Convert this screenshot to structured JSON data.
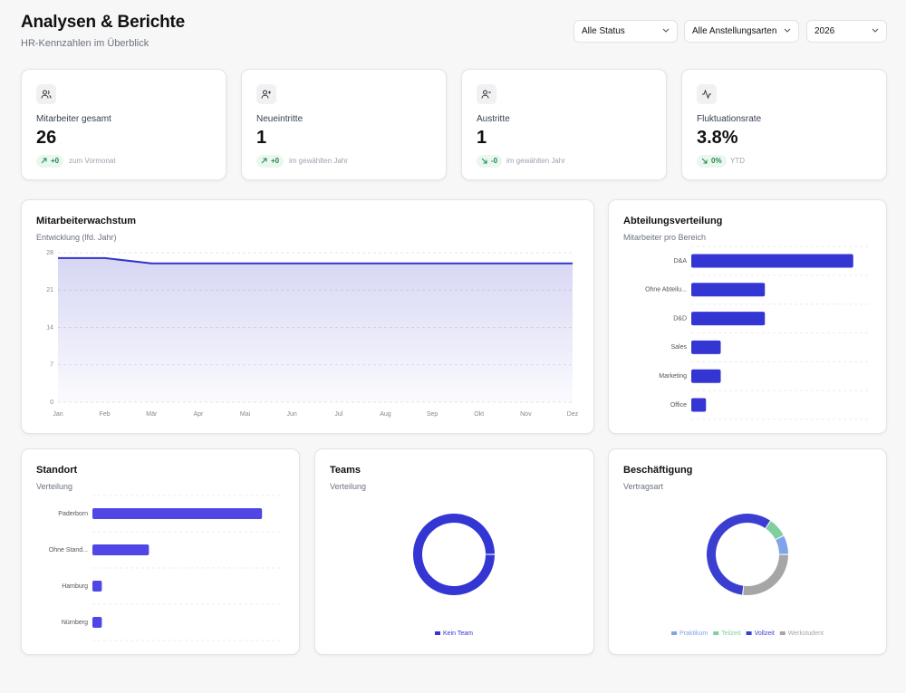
{
  "header": {
    "title": "Analysen & Berichte",
    "subtitle": "HR-Kennzahlen im Überblick"
  },
  "filters": [
    "Alle Status",
    "Alle Anstellungsarten",
    "2026"
  ],
  "kpis": [
    {
      "label": "Mitarbeiter gesamt",
      "value": "26",
      "change": "+0",
      "note": "zum Vormonat"
    },
    {
      "label": "Neueintritte",
      "value": "1",
      "change": "+0",
      "note": "im gewählten Jahr"
    },
    {
      "label": "Austritte",
      "value": "1",
      "change": "-0",
      "note": "im gewählten Jahr"
    },
    {
      "label": "Fluktuationsrate",
      "value": "3.8%",
      "change": "0%",
      "note": "YTD"
    }
  ],
  "growth_chart": {
    "type": "area",
    "title": "Mitarbeiterwachstum",
    "subtitle": "Entwicklung (lfd. Jahr)",
    "categories": [
      "Jan",
      "Feb",
      "Mär",
      "Apr",
      "Mai",
      "Jun",
      "Jul",
      "Aug",
      "Sep",
      "Okt",
      "Nov",
      "Dez"
    ],
    "values": [
      27,
      27,
      26,
      26,
      26,
      26,
      26,
      26,
      26,
      26,
      26,
      26
    ],
    "ylim": [
      0,
      28
    ],
    "yticks": [
      0,
      7,
      14,
      21,
      28
    ],
    "grid": true,
    "color": "#3434c8"
  },
  "department_chart": {
    "type": "bar",
    "orientation": "horizontal",
    "title": "Abteilungsverteilung",
    "subtitle": "Mitarbeiter pro Bereich",
    "categories": [
      "D&A",
      "Ohne Abteilu...",
      "D&D",
      "Sales",
      "Marketing",
      "Office"
    ],
    "values": [
      11,
      5,
      5,
      2,
      2,
      1
    ],
    "xlim": [
      0,
      12
    ],
    "grid": true,
    "color": "#3436d3"
  },
  "location_chart": {
    "type": "bar",
    "orientation": "horizontal",
    "title": "Standort",
    "subtitle": "Verteilung",
    "categories": [
      "Paderborn",
      "Ohne Stand...",
      "Hamburg",
      "Nürnberg"
    ],
    "values": [
      18,
      6,
      1,
      1
    ],
    "xlim": [
      0,
      20
    ],
    "grid": true,
    "color": "#5046e5"
  },
  "teams_chart": {
    "type": "donut",
    "title": "Teams",
    "subtitle": "Verteilung",
    "categories": [
      "Kein Team"
    ],
    "values": [
      26
    ],
    "colors": [
      "#3436d3"
    ]
  },
  "employment_chart": {
    "type": "donut",
    "title": "Beschäftigung",
    "subtitle": "Vertragsart",
    "categories": [
      "Praktikum",
      "Teilzeit",
      "Vollzeit",
      "Werkstudent"
    ],
    "values": [
      2,
      2,
      15,
      7
    ],
    "colors": [
      "#7fa4e8",
      "#7fcf9f",
      "#3b3fd1",
      "#a6a6a6"
    ]
  }
}
